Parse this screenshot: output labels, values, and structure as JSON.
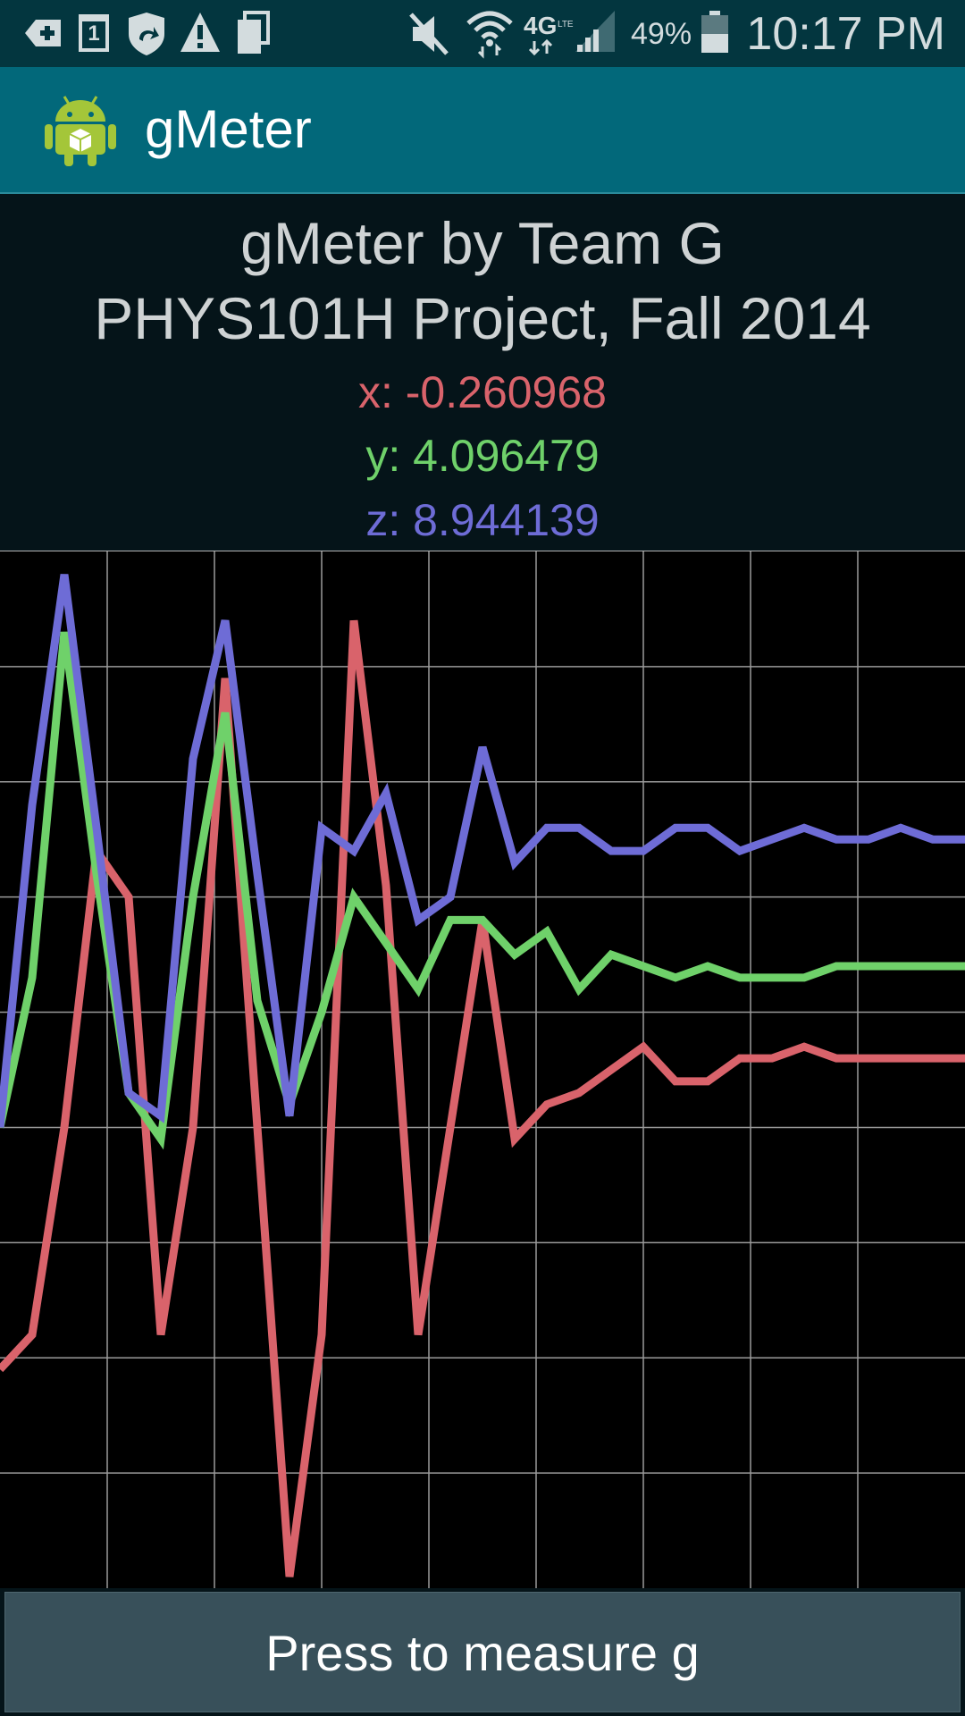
{
  "status_bar": {
    "icons": [
      "add-notification-icon",
      "calendar-icon",
      "shield-update-icon",
      "warning-icon",
      "copy-icon",
      "mute-icon",
      "wifi-icon",
      "network-4g-lte-icon",
      "signal-icon",
      "battery-icon"
    ],
    "calendar_day": "1",
    "battery_percent": "49%",
    "time": "10:17 PM"
  },
  "action_bar": {
    "app_icon": "android-robot-icon",
    "title": "gMeter"
  },
  "header": {
    "line1": "gMeter by Team G",
    "line2": "PHYS101H Project, Fall 2014"
  },
  "readouts": {
    "x": "x: -0.260968",
    "y": "y: 4.096479",
    "z": "z: 8.944139"
  },
  "colors": {
    "x": "#d9636b",
    "y": "#6fd16a",
    "z": "#6e6cd6",
    "grid": "#9a9a9a"
  },
  "chart_data": {
    "type": "line",
    "grid": true,
    "x": [
      0,
      1,
      2,
      3,
      4,
      5,
      6,
      7,
      8,
      9,
      10,
      11,
      12,
      13,
      14,
      15,
      16,
      17,
      18,
      19,
      20,
      21,
      22,
      23,
      24,
      25,
      26,
      27,
      28,
      29,
      30
    ],
    "series": [
      {
        "values": [
          -2.1,
          -1.8,
          0.0,
          2.4,
          2.0,
          -1.8,
          0.0,
          3.9,
          0.0,
          -3.9,
          -1.8,
          4.4,
          2.1,
          -1.8,
          0.0,
          1.8,
          -0.1,
          0.2,
          0.3,
          0.5,
          0.7,
          0.4,
          0.4,
          0.6,
          0.6,
          0.7,
          0.6,
          0.6,
          0.6,
          0.6,
          0.6
        ]
      },
      {
        "values": [
          0.0,
          1.3,
          4.3,
          2.2,
          0.3,
          -0.1,
          2.0,
          3.6,
          1.1,
          0.2,
          1.0,
          2.0,
          1.6,
          1.2,
          1.8,
          1.8,
          1.5,
          1.7,
          1.2,
          1.5,
          1.4,
          1.3,
          1.4,
          1.3,
          1.3,
          1.3,
          1.4,
          1.4,
          1.4,
          1.4,
          1.4
        ]
      },
      {
        "values": [
          0.0,
          2.8,
          4.8,
          2.6,
          0.3,
          0.1,
          3.2,
          4.4,
          2.2,
          0.1,
          2.6,
          2.4,
          2.9,
          1.8,
          2.0,
          3.3,
          2.3,
          2.6,
          2.6,
          2.4,
          2.4,
          2.6,
          2.6,
          2.4,
          2.5,
          2.6,
          2.5,
          2.5,
          2.6,
          2.5,
          2.5
        ]
      }
    ],
    "ylim": [
      -4,
      5
    ],
    "xlim": [
      0,
      30
    ]
  },
  "button": {
    "label": "Press to measure g"
  }
}
